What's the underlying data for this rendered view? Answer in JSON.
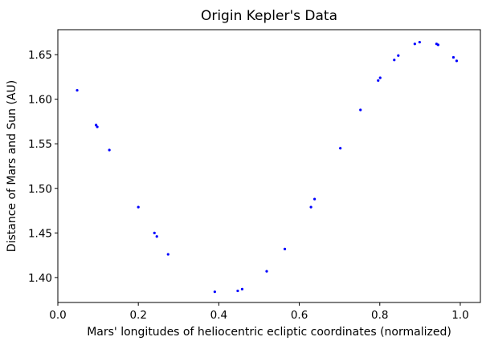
{
  "chart_data": {
    "type": "scatter",
    "title": "Origin Kepler's Data",
    "xlabel": "Mars' longitudes of heliocentric ecliptic coordinates (normalized)",
    "ylabel": "Distance of Mars and Sun (AU)",
    "xlim": [
      0.0,
      1.05
    ],
    "ylim": [
      1.372,
      1.678
    ],
    "x_ticks": [
      "0.0",
      "0.2",
      "0.4",
      "0.6",
      "0.8",
      "1.0"
    ],
    "y_ticks": [
      "1.40",
      "1.45",
      "1.50",
      "1.55",
      "1.60",
      "1.65"
    ],
    "grid": false,
    "series": [
      {
        "color": "#0000ff",
        "points": [
          {
            "x": 0.048,
            "y": 1.61
          },
          {
            "x": 0.095,
            "y": 1.571
          },
          {
            "x": 0.098,
            "y": 1.569
          },
          {
            "x": 0.128,
            "y": 1.543
          },
          {
            "x": 0.2,
            "y": 1.479
          },
          {
            "x": 0.24,
            "y": 1.45
          },
          {
            "x": 0.246,
            "y": 1.446
          },
          {
            "x": 0.274,
            "y": 1.426
          },
          {
            "x": 0.39,
            "y": 1.384
          },
          {
            "x": 0.447,
            "y": 1.385
          },
          {
            "x": 0.458,
            "y": 1.387
          },
          {
            "x": 0.519,
            "y": 1.407
          },
          {
            "x": 0.564,
            "y": 1.432
          },
          {
            "x": 0.629,
            "y": 1.479
          },
          {
            "x": 0.638,
            "y": 1.488
          },
          {
            "x": 0.702,
            "y": 1.545
          },
          {
            "x": 0.752,
            "y": 1.588
          },
          {
            "x": 0.796,
            "y": 1.621
          },
          {
            "x": 0.801,
            "y": 1.624
          },
          {
            "x": 0.836,
            "y": 1.644
          },
          {
            "x": 0.846,
            "y": 1.649
          },
          {
            "x": 0.887,
            "y": 1.662
          },
          {
            "x": 0.899,
            "y": 1.664
          },
          {
            "x": 0.941,
            "y": 1.662
          },
          {
            "x": 0.945,
            "y": 1.661
          },
          {
            "x": 0.983,
            "y": 1.647
          },
          {
            "x": 0.991,
            "y": 1.643
          }
        ]
      }
    ]
  }
}
